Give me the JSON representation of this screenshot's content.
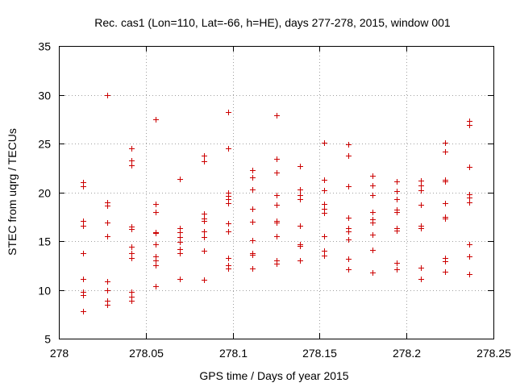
{
  "chart_data": {
    "type": "scatter",
    "title": "Rec. cas1 (Lon=110, Lat=-66, h=HE), days 277-278, 2015, window 001",
    "xlabel": "GPS time / Days of year 2015",
    "ylabel": "STEC from uqrg / TECUs",
    "xlim": [
      278,
      278.25
    ],
    "ylim": [
      5,
      35
    ],
    "xticks": [
      278,
      278.05,
      278.1,
      278.15,
      278.2,
      278.25
    ],
    "xtick_labels": [
      "278",
      "278.05",
      "278.1",
      "278.15",
      "278.2",
      "278.25"
    ],
    "yticks": [
      5,
      10,
      15,
      20,
      25,
      30,
      35
    ],
    "ytick_labels": [
      "5",
      "10",
      "15",
      "20",
      "25",
      "30",
      "35"
    ],
    "grid": true,
    "marker": "+",
    "point_color": "#cc0000",
    "series": [
      {
        "name": "STEC",
        "points": [
          [
            278.0139,
            7.8
          ],
          [
            278.0139,
            9.5
          ],
          [
            278.0139,
            9.8
          ],
          [
            278.0139,
            11.1
          ],
          [
            278.0139,
            13.8
          ],
          [
            278.0139,
            16.6
          ],
          [
            278.0139,
            17.1
          ],
          [
            278.0139,
            20.6
          ],
          [
            278.0139,
            21.0
          ],
          [
            278.0278,
            8.5
          ],
          [
            278.0278,
            8.9
          ],
          [
            278.0278,
            10.0
          ],
          [
            278.0278,
            10.9
          ],
          [
            278.0278,
            15.5
          ],
          [
            278.0278,
            16.9
          ],
          [
            278.0278,
            18.6
          ],
          [
            278.0278,
            19.0
          ],
          [
            278.0278,
            30.0
          ],
          [
            278.0417,
            8.9
          ],
          [
            278.0417,
            9.3
          ],
          [
            278.0417,
            9.8
          ],
          [
            278.0417,
            13.3
          ],
          [
            278.0417,
            13.8
          ],
          [
            278.0417,
            14.4
          ],
          [
            278.0417,
            16.2
          ],
          [
            278.0417,
            16.5
          ],
          [
            278.0417,
            22.8
          ],
          [
            278.0417,
            23.3
          ],
          [
            278.0417,
            24.5
          ],
          [
            278.0556,
            10.4
          ],
          [
            278.0556,
            12.5
          ],
          [
            278.0556,
            13.0
          ],
          [
            278.0556,
            13.4
          ],
          [
            278.0556,
            14.7
          ],
          [
            278.0556,
            15.8
          ],
          [
            278.0556,
            15.9
          ],
          [
            278.0556,
            18.0
          ],
          [
            278.0556,
            18.8
          ],
          [
            278.0556,
            27.5
          ],
          [
            278.0694,
            11.1
          ],
          [
            278.0694,
            13.8
          ],
          [
            278.0694,
            14.2
          ],
          [
            278.0694,
            14.9
          ],
          [
            278.0694,
            15.4
          ],
          [
            278.0694,
            15.9
          ],
          [
            278.0694,
            16.3
          ],
          [
            278.0694,
            21.4
          ],
          [
            278.0833,
            11.0
          ],
          [
            278.0833,
            14.0
          ],
          [
            278.0833,
            15.4
          ],
          [
            278.0833,
            16.0
          ],
          [
            278.0833,
            17.1
          ],
          [
            278.0833,
            17.3
          ],
          [
            278.0833,
            17.8
          ],
          [
            278.0833,
            23.2
          ],
          [
            278.0833,
            23.8
          ],
          [
            278.0972,
            12.2
          ],
          [
            278.0972,
            12.5
          ],
          [
            278.0972,
            13.3
          ],
          [
            278.0972,
            16.0
          ],
          [
            278.0972,
            16.8
          ],
          [
            278.0972,
            18.9
          ],
          [
            278.0972,
            19.3
          ],
          [
            278.0972,
            19.6
          ],
          [
            278.0972,
            20.0
          ],
          [
            278.0972,
            24.5
          ],
          [
            278.0972,
            28.2
          ],
          [
            278.1111,
            12.2
          ],
          [
            278.1111,
            13.6
          ],
          [
            278.1111,
            13.8
          ],
          [
            278.1111,
            15.1
          ],
          [
            278.1111,
            17.0
          ],
          [
            278.1111,
            18.3
          ],
          [
            278.1111,
            20.3
          ],
          [
            278.1111,
            21.5
          ],
          [
            278.1111,
            22.3
          ],
          [
            278.125,
            12.7
          ],
          [
            278.125,
            13.0
          ],
          [
            278.125,
            15.5
          ],
          [
            278.125,
            16.9
          ],
          [
            278.125,
            17.1
          ],
          [
            278.125,
            18.7
          ],
          [
            278.125,
            19.7
          ],
          [
            278.125,
            22.0
          ],
          [
            278.125,
            23.4
          ],
          [
            278.125,
            27.9
          ],
          [
            278.1389,
            13.0
          ],
          [
            278.1389,
            14.5
          ],
          [
            278.1389,
            14.7
          ],
          [
            278.1389,
            16.6
          ],
          [
            278.1389,
            19.3
          ],
          [
            278.1389,
            19.7
          ],
          [
            278.1389,
            20.3
          ],
          [
            278.1389,
            22.7
          ],
          [
            278.1528,
            13.5
          ],
          [
            278.1528,
            14.0
          ],
          [
            278.1528,
            15.5
          ],
          [
            278.1528,
            17.9
          ],
          [
            278.1528,
            18.3
          ],
          [
            278.1528,
            18.8
          ],
          [
            278.1528,
            20.2
          ],
          [
            278.1528,
            21.3
          ],
          [
            278.1528,
            25.1
          ],
          [
            278.1667,
            12.1
          ],
          [
            278.1667,
            13.2
          ],
          [
            278.1667,
            15.2
          ],
          [
            278.1667,
            16.0
          ],
          [
            278.1667,
            16.3
          ],
          [
            278.1667,
            17.4
          ],
          [
            278.1667,
            20.6
          ],
          [
            278.1667,
            23.8
          ],
          [
            278.1667,
            24.9
          ],
          [
            278.1806,
            11.8
          ],
          [
            278.1806,
            14.1
          ],
          [
            278.1806,
            15.7
          ],
          [
            278.1806,
            16.9
          ],
          [
            278.1806,
            17.2
          ],
          [
            278.1806,
            18.0
          ],
          [
            278.1806,
            19.7
          ],
          [
            278.1806,
            20.7
          ],
          [
            278.1806,
            21.7
          ],
          [
            278.1944,
            12.1
          ],
          [
            278.1944,
            12.8
          ],
          [
            278.1944,
            16.1
          ],
          [
            278.1944,
            16.3
          ],
          [
            278.1944,
            18.0
          ],
          [
            278.1944,
            18.2
          ],
          [
            278.1944,
            19.3
          ],
          [
            278.1944,
            20.1
          ],
          [
            278.1944,
            21.1
          ],
          [
            278.2083,
            11.1
          ],
          [
            278.2083,
            12.3
          ],
          [
            278.2083,
            16.3
          ],
          [
            278.2083,
            16.6
          ],
          [
            278.2083,
            18.7
          ],
          [
            278.2083,
            20.2
          ],
          [
            278.2083,
            20.7
          ],
          [
            278.2083,
            21.2
          ],
          [
            278.2222,
            11.9
          ],
          [
            278.2222,
            12.9
          ],
          [
            278.2222,
            13.3
          ],
          [
            278.2222,
            17.3
          ],
          [
            278.2222,
            17.5
          ],
          [
            278.2222,
            18.9
          ],
          [
            278.2222,
            21.1
          ],
          [
            278.2222,
            21.3
          ],
          [
            278.2222,
            24.2
          ],
          [
            278.2222,
            25.1
          ],
          [
            278.2361,
            11.6
          ],
          [
            278.2361,
            13.4
          ],
          [
            278.2361,
            14.7
          ],
          [
            278.2361,
            19.0
          ],
          [
            278.2361,
            19.5
          ],
          [
            278.2361,
            19.8
          ],
          [
            278.2361,
            22.6
          ],
          [
            278.2361,
            26.9
          ],
          [
            278.2361,
            27.3
          ]
        ]
      }
    ]
  }
}
